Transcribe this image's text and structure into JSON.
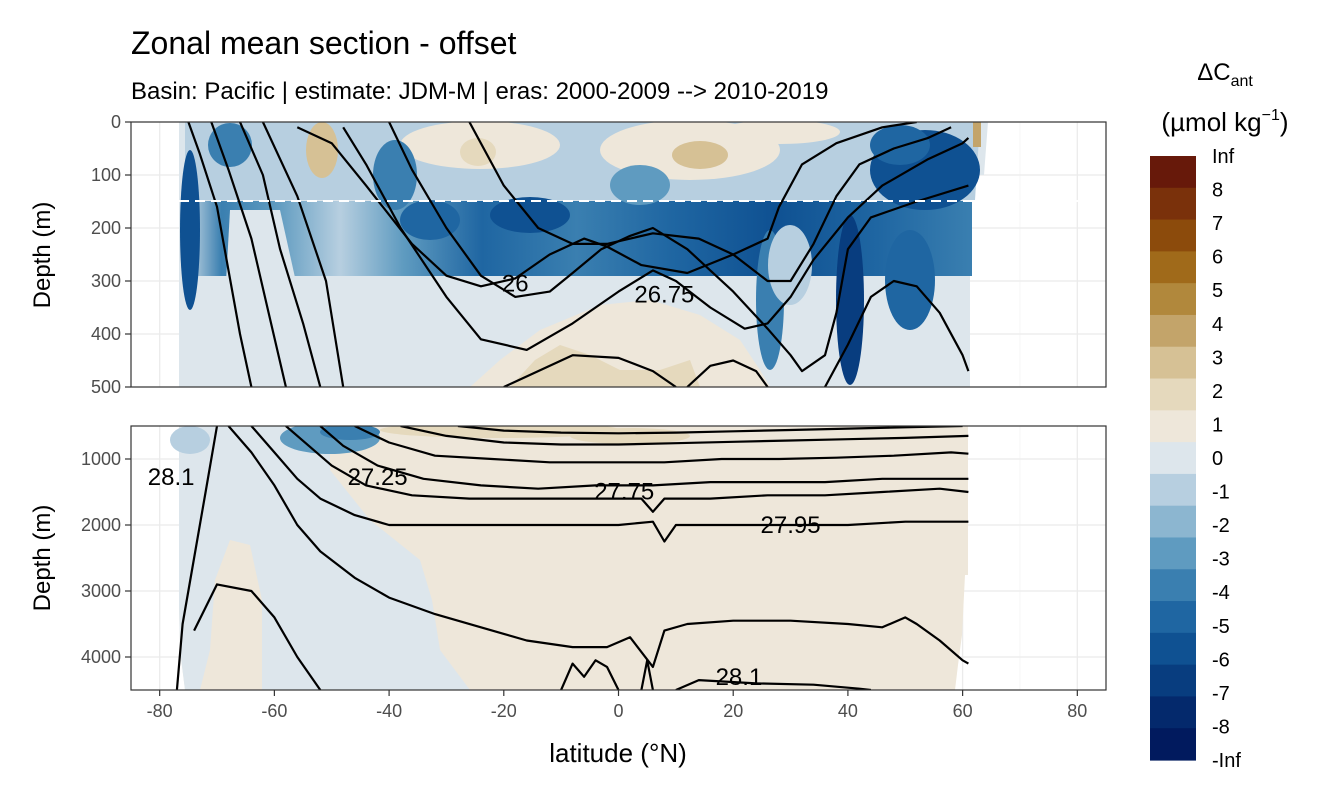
{
  "title": "Zonal mean section - offset",
  "subtitle": "Basin: Pacific | estimate: JDM-M | eras: 2000-2009 --> 2010-2019",
  "legend": {
    "title_main": "ΔC",
    "title_sub": "ant",
    "title_unit": "(µmol kg",
    "title_exp": "−1",
    "title_close": ")",
    "labels": [
      "Inf",
      "8",
      "7",
      "6",
      "5",
      "4",
      "3",
      "2",
      "1",
      "0",
      "-1",
      "-2",
      "-3",
      "-4",
      "-5",
      "-6",
      "-7",
      "-8",
      "-Inf"
    ],
    "colors": [
      "#67190a",
      "#7a310b",
      "#8c4b0c",
      "#a06a1a",
      "#b1883c",
      "#c3a46a",
      "#d6c195",
      "#e5d9bd",
      "#eee7da",
      "#dde6ec",
      "#b7cfe0",
      "#8cb6d0",
      "#5f9bc0",
      "#3a7fb0",
      "#1f66a2",
      "#0f5192",
      "#083d7f",
      "#04296c",
      "#011a5e"
    ]
  },
  "chart_data": {
    "type": "heatmap",
    "title": "Zonal mean section - offset",
    "subtitle": "Basin: Pacific | estimate: JDM-M | eras: 2000-2009 --> 2010-2019",
    "xlabel": "latitude (°N)",
    "ylabel": "Depth (m)",
    "xlim": [
      -85,
      85
    ],
    "x_ticks": [
      -80,
      -60,
      -40,
      -20,
      0,
      20,
      40,
      60,
      80
    ],
    "panels": [
      {
        "name": "upper",
        "ylim": [
          500,
          0
        ],
        "y_ticks": [
          0,
          100,
          200,
          300,
          400,
          500
        ],
        "reference_line_depth": 150
      },
      {
        "name": "lower",
        "ylim": [
          4500,
          500
        ],
        "y_ticks": [
          1000,
          2000,
          3000,
          4000
        ]
      }
    ],
    "colorbar_levels": [
      "-Inf",
      "-8",
      "-7",
      "-6",
      "-5",
      "-4",
      "-3",
      "-2",
      "-1",
      "0",
      "1",
      "2",
      "3",
      "4",
      "5",
      "6",
      "7",
      "8",
      "Inf"
    ],
    "contour_labels": [
      {
        "text": "26",
        "lat": -18,
        "depth": 305
      },
      {
        "text": "26.75",
        "lat": 8,
        "depth": 325
      },
      {
        "text": "28.1",
        "lat": -78,
        "depth": 1270
      },
      {
        "text": "27.25",
        "lat": -42,
        "depth": 1270
      },
      {
        "text": "27.75",
        "lat": 1,
        "depth": 1490
      },
      {
        "text": "27.95",
        "lat": 30,
        "depth": 2000
      },
      {
        "text": "28.1",
        "lat": 21,
        "depth": 4300
      }
    ],
    "upper_density_contours": [
      [
        [
          -75,
          0
        ],
        [
          -73,
          60
        ],
        [
          -70,
          160
        ],
        [
          -68,
          280
        ],
        [
          -66,
          400
        ],
        [
          -64,
          500
        ]
      ],
      [
        [
          -71,
          0
        ],
        [
          -68,
          90
        ],
        [
          -64,
          220
        ],
        [
          -61,
          360
        ],
        [
          -58,
          500
        ]
      ],
      [
        [
          -66,
          0
        ],
        [
          -62,
          100
        ],
        [
          -59,
          240
        ],
        [
          -55,
          380
        ],
        [
          -52,
          500
        ]
      ],
      [
        [
          -62,
          0
        ],
        [
          -56,
          140
        ],
        [
          -51,
          300
        ],
        [
          -48,
          500
        ]
      ],
      [
        [
          -56,
          10
        ],
        [
          -50,
          40
        ],
        [
          -44,
          120
        ],
        [
          -36,
          230
        ],
        [
          -30,
          290
        ],
        [
          -24,
          310
        ],
        [
          -18,
          295
        ],
        [
          -12,
          250
        ],
        [
          -6,
          220
        ],
        [
          -2,
          235
        ],
        [
          4,
          270
        ],
        [
          12,
          285
        ],
        [
          20,
          250
        ],
        [
          26,
          220
        ],
        [
          28,
          160
        ],
        [
          32,
          80
        ],
        [
          38,
          40
        ],
        [
          46,
          10
        ],
        [
          52,
          0
        ]
      ],
      [
        [
          -48,
          10
        ],
        [
          -44,
          80
        ],
        [
          -38,
          200
        ],
        [
          -30,
          330
        ],
        [
          -24,
          410
        ],
        [
          -16,
          430
        ],
        [
          -8,
          380
        ],
        [
          0,
          320
        ],
        [
          6,
          280
        ],
        [
          10,
          300
        ],
        [
          16,
          350
        ],
        [
          22,
          390
        ],
        [
          26,
          380
        ],
        [
          30,
          330
        ],
        [
          34,
          260
        ],
        [
          40,
          180
        ],
        [
          46,
          120
        ],
        [
          54,
          70
        ],
        [
          60,
          40
        ],
        [
          61,
          30
        ]
      ],
      [
        [
          -40,
          0
        ],
        [
          -36,
          90
        ],
        [
          -30,
          200
        ],
        [
          -24,
          290
        ],
        [
          -18,
          330
        ],
        [
          -12,
          320
        ],
        [
          -8,
          285
        ],
        [
          -3,
          240
        ],
        [
          2,
          215
        ],
        [
          6,
          200
        ],
        [
          12,
          240
        ],
        [
          20,
          320
        ],
        [
          26,
          390
        ],
        [
          30,
          440
        ],
        [
          32,
          470
        ],
        [
          36,
          440
        ],
        [
          38,
          360
        ],
        [
          40,
          240
        ],
        [
          44,
          180
        ],
        [
          52,
          150
        ],
        [
          61,
          120
        ]
      ],
      [
        [
          -26,
          0
        ],
        [
          -20,
          120
        ],
        [
          -14,
          200
        ],
        [
          -8,
          230
        ],
        [
          -2,
          230
        ],
        [
          6,
          210
        ],
        [
          14,
          220
        ],
        [
          20,
          250
        ],
        [
          26,
          300
        ],
        [
          30,
          300
        ],
        [
          34,
          230
        ],
        [
          38,
          140
        ],
        [
          42,
          80
        ],
        [
          48,
          50
        ],
        [
          54,
          30
        ],
        [
          58,
          10
        ]
      ],
      [
        [
          -20,
          500
        ],
        [
          -14,
          470
        ],
        [
          -8,
          440
        ],
        [
          0,
          445
        ],
        [
          6,
          470
        ],
        [
          10,
          500
        ]
      ],
      [
        [
          12,
          500
        ],
        [
          16,
          460
        ],
        [
          20,
          450
        ],
        [
          24,
          470
        ],
        [
          26,
          500
        ]
      ],
      [
        [
          36,
          500
        ],
        [
          40,
          420
        ],
        [
          44,
          330
        ],
        [
          48,
          300
        ],
        [
          52,
          310
        ],
        [
          56,
          360
        ],
        [
          60,
          440
        ],
        [
          61,
          470
        ]
      ]
    ],
    "lower_density_contours": [
      [
        [
          -77,
          4500
        ],
        [
          -76,
          3500
        ],
        [
          -74,
          2500
        ],
        [
          -72,
          1500
        ],
        [
          -70,
          500
        ]
      ],
      [
        [
          -74,
          3600
        ],
        [
          -70,
          2900
        ],
        [
          -64,
          3000
        ],
        [
          -60,
          3400
        ],
        [
          -56,
          4000
        ],
        [
          -52,
          4500
        ]
      ],
      [
        [
          -68,
          500
        ],
        [
          -64,
          900
        ],
        [
          -60,
          1400
        ],
        [
          -56,
          2000
        ],
        [
          -52,
          2400
        ],
        [
          -46,
          2800
        ],
        [
          -40,
          3100
        ],
        [
          -32,
          3350
        ],
        [
          -24,
          3550
        ],
        [
          -16,
          3750
        ],
        [
          -8,
          3850
        ],
        [
          -2,
          3850
        ],
        [
          2,
          3700
        ],
        [
          6,
          4150
        ],
        [
          8,
          3600
        ],
        [
          12,
          3500
        ],
        [
          20,
          3450
        ],
        [
          30,
          3450
        ],
        [
          40,
          3500
        ],
        [
          46,
          3550
        ],
        [
          50,
          3400
        ],
        [
          52,
          3500
        ],
        [
          56,
          3750
        ],
        [
          60,
          4050
        ],
        [
          61,
          4100
        ]
      ],
      [
        [
          -64,
          500
        ],
        [
          -60,
          900
        ],
        [
          -56,
          1300
        ],
        [
          -52,
          1600
        ],
        [
          -46,
          1850
        ],
        [
          -40,
          2000
        ],
        [
          -30,
          2000
        ],
        [
          -20,
          2000
        ],
        [
          -10,
          2000
        ],
        [
          0,
          2000
        ],
        [
          6,
          1950
        ],
        [
          8,
          2250
        ],
        [
          10,
          2000
        ],
        [
          20,
          2000
        ],
        [
          30,
          2000
        ],
        [
          40,
          2000
        ],
        [
          50,
          1950
        ],
        [
          61,
          1950
        ]
      ],
      [
        [
          -58,
          500
        ],
        [
          -54,
          800
        ],
        [
          -50,
          1100
        ],
        [
          -44,
          1400
        ],
        [
          -36,
          1550
        ],
        [
          -26,
          1600
        ],
        [
          -16,
          1600
        ],
        [
          -6,
          1600
        ],
        [
          4,
          1600
        ],
        [
          6,
          1800
        ],
        [
          8,
          1600
        ],
        [
          16,
          1600
        ],
        [
          26,
          1550
        ],
        [
          36,
          1550
        ],
        [
          46,
          1500
        ],
        [
          56,
          1450
        ],
        [
          61,
          1500
        ]
      ],
      [
        [
          -52,
          500
        ],
        [
          -48,
          800
        ],
        [
          -42,
          1100
        ],
        [
          -34,
          1300
        ],
        [
          -24,
          1400
        ],
        [
          -14,
          1450
        ],
        [
          -4,
          1400
        ],
        [
          6,
          1400
        ],
        [
          16,
          1350
        ],
        [
          26,
          1350
        ],
        [
          36,
          1350
        ],
        [
          46,
          1300
        ],
        [
          56,
          1300
        ],
        [
          61,
          1300
        ]
      ],
      [
        [
          -46,
          500
        ],
        [
          -40,
          750
        ],
        [
          -32,
          950
        ],
        [
          -22,
          1000
        ],
        [
          -12,
          1050
        ],
        [
          -2,
          1050
        ],
        [
          8,
          1050
        ],
        [
          18,
          1000
        ],
        [
          28,
          1000
        ],
        [
          38,
          980
        ],
        [
          48,
          950
        ],
        [
          58,
          900
        ],
        [
          61,
          920
        ]
      ],
      [
        [
          -38,
          500
        ],
        [
          -30,
          650
        ],
        [
          -20,
          750
        ],
        [
          -10,
          780
        ],
        [
          0,
          780
        ],
        [
          10,
          760
        ],
        [
          20,
          740
        ],
        [
          30,
          720
        ],
        [
          40,
          700
        ],
        [
          50,
          680
        ],
        [
          61,
          650
        ]
      ],
      [
        [
          -28,
          500
        ],
        [
          -20,
          570
        ],
        [
          -10,
          600
        ],
        [
          0,
          610
        ],
        [
          10,
          600
        ],
        [
          20,
          580
        ],
        [
          30,
          560
        ],
        [
          40,
          540
        ],
        [
          50,
          520
        ],
        [
          60,
          500
        ]
      ],
      [
        [
          -10,
          4500
        ],
        [
          -8,
          4100
        ],
        [
          -6,
          4300
        ],
        [
          -4,
          4050
        ],
        [
          -2,
          4150
        ],
        [
          0,
          4500
        ]
      ],
      [
        [
          4,
          4500
        ],
        [
          5,
          4050
        ],
        [
          6,
          4500
        ]
      ],
      [
        [
          10,
          4500
        ],
        [
          14,
          4350
        ],
        [
          24,
          4400
        ],
        [
          34,
          4420
        ],
        [
          42,
          4480
        ],
        [
          44,
          4500
        ]
      ]
    ]
  }
}
